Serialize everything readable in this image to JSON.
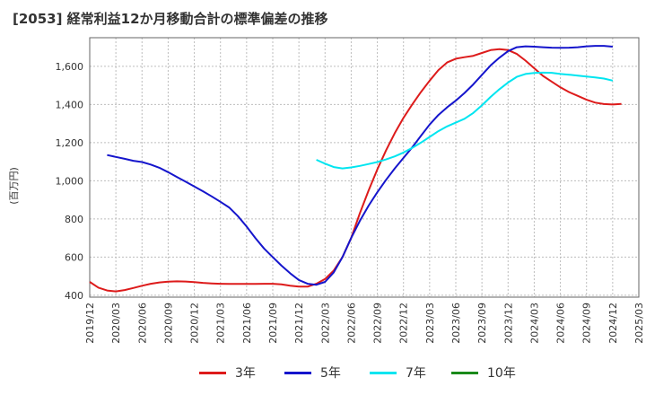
{
  "title": "[2053]  経常利益12か月移動合計の標準偏差の推移",
  "chart_data": {
    "type": "line",
    "title": "[2053]  経常利益12か月移動合計の標準偏差の推移",
    "ylabel": "(百万円)",
    "xlabel": "",
    "ylim": [
      390,
      1750
    ],
    "yticks": [
      400,
      600,
      800,
      1000,
      1200,
      1400,
      1600
    ],
    "ytick_labels": [
      "400",
      "600",
      "800",
      "1,000",
      "1,200",
      "1,400",
      "1,600"
    ],
    "xlim": [
      "2019-12",
      "2025-03"
    ],
    "xtick_labels": [
      "2019/12",
      "2020/03",
      "2020/06",
      "2020/09",
      "2020/12",
      "2021/03",
      "2021/06",
      "2021/09",
      "2021/12",
      "2022/03",
      "2022/06",
      "2022/09",
      "2022/12",
      "2023/03",
      "2023/06",
      "2023/09",
      "2023/12",
      "2024/03",
      "2024/06",
      "2024/09",
      "2024/12",
      "2025/03"
    ],
    "grid": true,
    "legend_position": "bottom",
    "series": [
      {
        "name": "3年",
        "color": "#dd1b1b",
        "points": [
          [
            "2019-12",
            470
          ],
          [
            "2020-01",
            440
          ],
          [
            "2020-02",
            425
          ],
          [
            "2020-03",
            420
          ],
          [
            "2020-04",
            427
          ],
          [
            "2020-05",
            438
          ],
          [
            "2020-06",
            450
          ],
          [
            "2020-07",
            460
          ],
          [
            "2020-08",
            467
          ],
          [
            "2020-09",
            471
          ],
          [
            "2020-10",
            473
          ],
          [
            "2020-11",
            472
          ],
          [
            "2020-12",
            469
          ],
          [
            "2021-01",
            465
          ],
          [
            "2021-02",
            462
          ],
          [
            "2021-03",
            460
          ],
          [
            "2021-04",
            459
          ],
          [
            "2021-05",
            459
          ],
          [
            "2021-06",
            459
          ],
          [
            "2021-07",
            459
          ],
          [
            "2021-08",
            460
          ],
          [
            "2021-09",
            460
          ],
          [
            "2021-10",
            457
          ],
          [
            "2021-11",
            450
          ],
          [
            "2021-12",
            445
          ],
          [
            "2022-01",
            445
          ],
          [
            "2022-02",
            460
          ],
          [
            "2022-03",
            485
          ],
          [
            "2022-04",
            530
          ],
          [
            "2022-05",
            600
          ],
          [
            "2022-06",
            700
          ],
          [
            "2022-07",
            830
          ],
          [
            "2022-08",
            950
          ],
          [
            "2022-09",
            1060
          ],
          [
            "2022-10",
            1160
          ],
          [
            "2022-11",
            1250
          ],
          [
            "2022-12",
            1330
          ],
          [
            "2023-01",
            1400
          ],
          [
            "2023-02",
            1465
          ],
          [
            "2023-03",
            1525
          ],
          [
            "2023-04",
            1580
          ],
          [
            "2023-05",
            1620
          ],
          [
            "2023-06",
            1640
          ],
          [
            "2023-07",
            1648
          ],
          [
            "2023-08",
            1655
          ],
          [
            "2023-09",
            1670
          ],
          [
            "2023-10",
            1685
          ],
          [
            "2023-11",
            1690
          ],
          [
            "2023-12",
            1685
          ],
          [
            "2024-01",
            1665
          ],
          [
            "2024-02",
            1630
          ],
          [
            "2024-03",
            1590
          ],
          [
            "2024-04",
            1550
          ],
          [
            "2024-05",
            1520
          ],
          [
            "2024-06",
            1490
          ],
          [
            "2024-07",
            1465
          ],
          [
            "2024-08",
            1445
          ],
          [
            "2024-09",
            1425
          ],
          [
            "2024-10",
            1410
          ],
          [
            "2024-11",
            1402
          ],
          [
            "2024-12",
            1400
          ],
          [
            "2025-01",
            1403
          ]
        ]
      },
      {
        "name": "5年",
        "color": "#1515cc",
        "points": [
          [
            "2020-02",
            1135
          ],
          [
            "2020-03",
            1125
          ],
          [
            "2020-04",
            1115
          ],
          [
            "2020-05",
            1105
          ],
          [
            "2020-06",
            1098
          ],
          [
            "2020-07",
            1085
          ],
          [
            "2020-08",
            1068
          ],
          [
            "2020-09",
            1045
          ],
          [
            "2020-10",
            1020
          ],
          [
            "2020-11",
            995
          ],
          [
            "2020-12",
            970
          ],
          [
            "2021-01",
            945
          ],
          [
            "2021-02",
            918
          ],
          [
            "2021-03",
            890
          ],
          [
            "2021-04",
            860
          ],
          [
            "2021-05",
            815
          ],
          [
            "2021-06",
            760
          ],
          [
            "2021-07",
            700
          ],
          [
            "2021-08",
            645
          ],
          [
            "2021-09",
            600
          ],
          [
            "2021-10",
            555
          ],
          [
            "2021-11",
            515
          ],
          [
            "2021-12",
            480
          ],
          [
            "2022-01",
            460
          ],
          [
            "2022-02",
            455
          ],
          [
            "2022-03",
            470
          ],
          [
            "2022-04",
            520
          ],
          [
            "2022-05",
            600
          ],
          [
            "2022-06",
            700
          ],
          [
            "2022-07",
            790
          ],
          [
            "2022-08",
            870
          ],
          [
            "2022-09",
            940
          ],
          [
            "2022-10",
            1005
          ],
          [
            "2022-11",
            1065
          ],
          [
            "2022-12",
            1120
          ],
          [
            "2023-01",
            1175
          ],
          [
            "2023-02",
            1235
          ],
          [
            "2023-03",
            1295
          ],
          [
            "2023-04",
            1345
          ],
          [
            "2023-05",
            1385
          ],
          [
            "2023-06",
            1420
          ],
          [
            "2023-07",
            1460
          ],
          [
            "2023-08",
            1505
          ],
          [
            "2023-09",
            1555
          ],
          [
            "2023-10",
            1605
          ],
          [
            "2023-11",
            1645
          ],
          [
            "2023-12",
            1680
          ],
          [
            "2024-01",
            1700
          ],
          [
            "2024-02",
            1705
          ],
          [
            "2024-03",
            1703
          ],
          [
            "2024-04",
            1700
          ],
          [
            "2024-05",
            1698
          ],
          [
            "2024-06",
            1697
          ],
          [
            "2024-07",
            1698
          ],
          [
            "2024-08",
            1700
          ],
          [
            "2024-09",
            1705
          ],
          [
            "2024-10",
            1707
          ],
          [
            "2024-11",
            1707
          ],
          [
            "2024-12",
            1703
          ]
        ]
      },
      {
        "name": "7年",
        "color": "#00e5f0",
        "points": [
          [
            "2022-02",
            1110
          ],
          [
            "2022-03",
            1090
          ],
          [
            "2022-04",
            1072
          ],
          [
            "2022-05",
            1065
          ],
          [
            "2022-06",
            1070
          ],
          [
            "2022-07",
            1078
          ],
          [
            "2022-08",
            1088
          ],
          [
            "2022-09",
            1098
          ],
          [
            "2022-10",
            1112
          ],
          [
            "2022-11",
            1128
          ],
          [
            "2022-12",
            1148
          ],
          [
            "2023-01",
            1172
          ],
          [
            "2023-02",
            1200
          ],
          [
            "2023-03",
            1230
          ],
          [
            "2023-04",
            1260
          ],
          [
            "2023-05",
            1285
          ],
          [
            "2023-06",
            1305
          ],
          [
            "2023-07",
            1325
          ],
          [
            "2023-08",
            1355
          ],
          [
            "2023-09",
            1395
          ],
          [
            "2023-10",
            1440
          ],
          [
            "2023-11",
            1480
          ],
          [
            "2023-12",
            1515
          ],
          [
            "2024-01",
            1545
          ],
          [
            "2024-02",
            1560
          ],
          [
            "2024-03",
            1565
          ],
          [
            "2024-04",
            1567
          ],
          [
            "2024-05",
            1566
          ],
          [
            "2024-06",
            1560
          ],
          [
            "2024-07",
            1556
          ],
          [
            "2024-08",
            1551
          ],
          [
            "2024-09",
            1546
          ],
          [
            "2024-10",
            1542
          ],
          [
            "2024-11",
            1536
          ],
          [
            "2024-12",
            1525
          ]
        ]
      },
      {
        "name": "10年",
        "color": "#1a8a1a",
        "points": []
      }
    ]
  }
}
